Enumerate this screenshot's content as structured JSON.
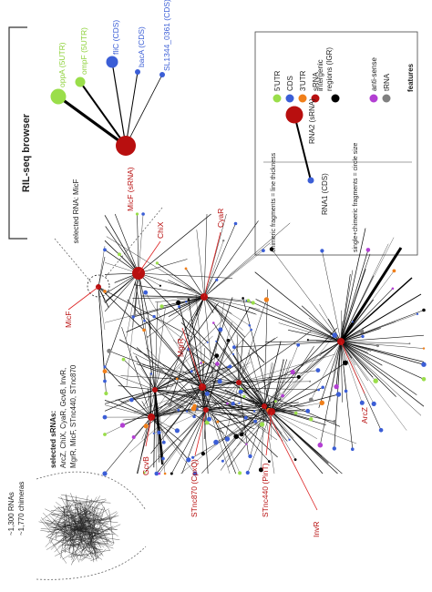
{
  "browser_label": "RIL-seq browser",
  "selected_rna_prefix": "selected RNA: ",
  "selected_rna": "MicF",
  "top_nodes": [
    {
      "label": "oppA (5UTR)",
      "color": "#9ade4a"
    },
    {
      "label": "ompF (5UTR)",
      "color": "#9ade4a"
    },
    {
      "label": "fliC (CDS)",
      "color": "#3b5ed6"
    },
    {
      "label": "bacA (CDS)",
      "color": "#3b5ed6"
    },
    {
      "label": "SL1344_0361 (CDS)",
      "color": "#3b5ed6"
    }
  ],
  "hub_node": {
    "label": "MicF (sRNA)",
    "color": "#b80f0f"
  },
  "legend": {
    "title": "features",
    "items": [
      {
        "label": "5'UTR",
        "color": "#9ade4a"
      },
      {
        "label": "CDS",
        "color": "#3b5ed6"
      },
      {
        "label": "3'UTR",
        "color": "#f07f1a"
      },
      {
        "label": "sRNA",
        "color": "#b80f0f"
      },
      {
        "label": "intergenic regions (IGR)",
        "color": "#000000"
      },
      {
        "label": "anti-sense",
        "color": "#b33fd3"
      },
      {
        "label": "tRNA",
        "color": "#808080"
      }
    ],
    "rna2_label": "RNA2 (sRNA)",
    "rna1_label": "RNA1 (CDS)",
    "thickness_note": "chimeric fragments = line thickness",
    "size_note": "single+chimeric fragments = circle size"
  },
  "network_labels": [
    "MicF",
    "ChiX",
    "CyaR",
    "MgrR",
    "GcvB",
    "STnc870 (CpxQ)",
    "STnc440 (PinT)",
    "InvR",
    "ArcZ"
  ],
  "selected_srnas_title": "selected sRNAs:",
  "selected_srnas_lines": [
    "ArcZ, ChiX, CyaR, GcvB, InvR,",
    "MgrR, MicF, STnc440, STnc870"
  ],
  "overview": {
    "rnas": "~1,300 RNAs",
    "chimeras": "~1,770 chimeras"
  }
}
